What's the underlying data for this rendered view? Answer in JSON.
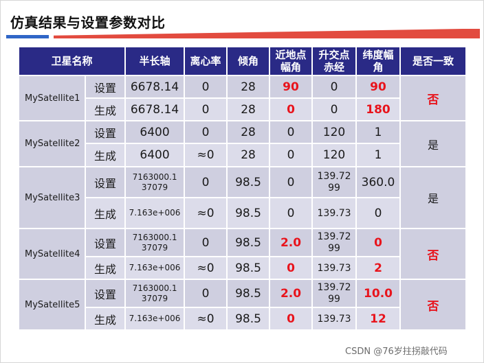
{
  "title": "仿真结果与设置参数对比",
  "watermark": "CSDN @76岁拄拐敲代码",
  "colors": {
    "header_bg": "#2a2a86",
    "cell_bg": "#cfcfe0",
    "mismatch": "#e8141c",
    "accent_blue": "#2f66c7",
    "accent_red": "#e24b3f"
  },
  "table": {
    "headers": [
      "卫星名称",
      "半长轴",
      "离心率",
      "倾角",
      "近地点幅角",
      "升交点赤经",
      "纬度幅角",
      "是否一致"
    ],
    "satellites": [
      {
        "name": "MySatellite1",
        "agree": "否",
        "set": [
          "设置",
          "6678.14",
          "0",
          "28",
          "90",
          "0",
          "90"
        ],
        "gen": [
          "生成",
          "6678.14",
          "0",
          "28",
          "0",
          "0",
          "180"
        ]
      },
      {
        "name": "MySatellite2",
        "agree": "是",
        "set": [
          "设置",
          "6400",
          "0",
          "28",
          "0",
          "120",
          "1"
        ],
        "gen": [
          "生成",
          "6400",
          "≈0",
          "28",
          "0",
          "120",
          "1"
        ]
      },
      {
        "name": "MySatellite3",
        "agree": "是",
        "set": [
          "设置",
          "7163000.137079",
          "0",
          "98.5",
          "0",
          "139.7299",
          "360.0"
        ],
        "gen": [
          "生成",
          "7.163e+006",
          "≈0",
          "98.5",
          "0",
          "139.73",
          "0"
        ]
      },
      {
        "name": "MySatellite4",
        "agree": "否",
        "set": [
          "设置",
          "7163000.137079",
          "0",
          "98.5",
          "2.0",
          "139.7299",
          "0"
        ],
        "gen": [
          "生成",
          "7.163e+006",
          "≈0",
          "98.5",
          "0",
          "139.73",
          "2"
        ]
      },
      {
        "name": "MySatellite5",
        "agree": "否",
        "set": [
          "设置",
          "7163000.137079",
          "0",
          "98.5",
          "2.0",
          "139.7299",
          "10.0"
        ],
        "gen": [
          "生成",
          "7.163e+006",
          "≈0",
          "98.5",
          "0",
          "139.73",
          "12"
        ]
      }
    ]
  }
}
